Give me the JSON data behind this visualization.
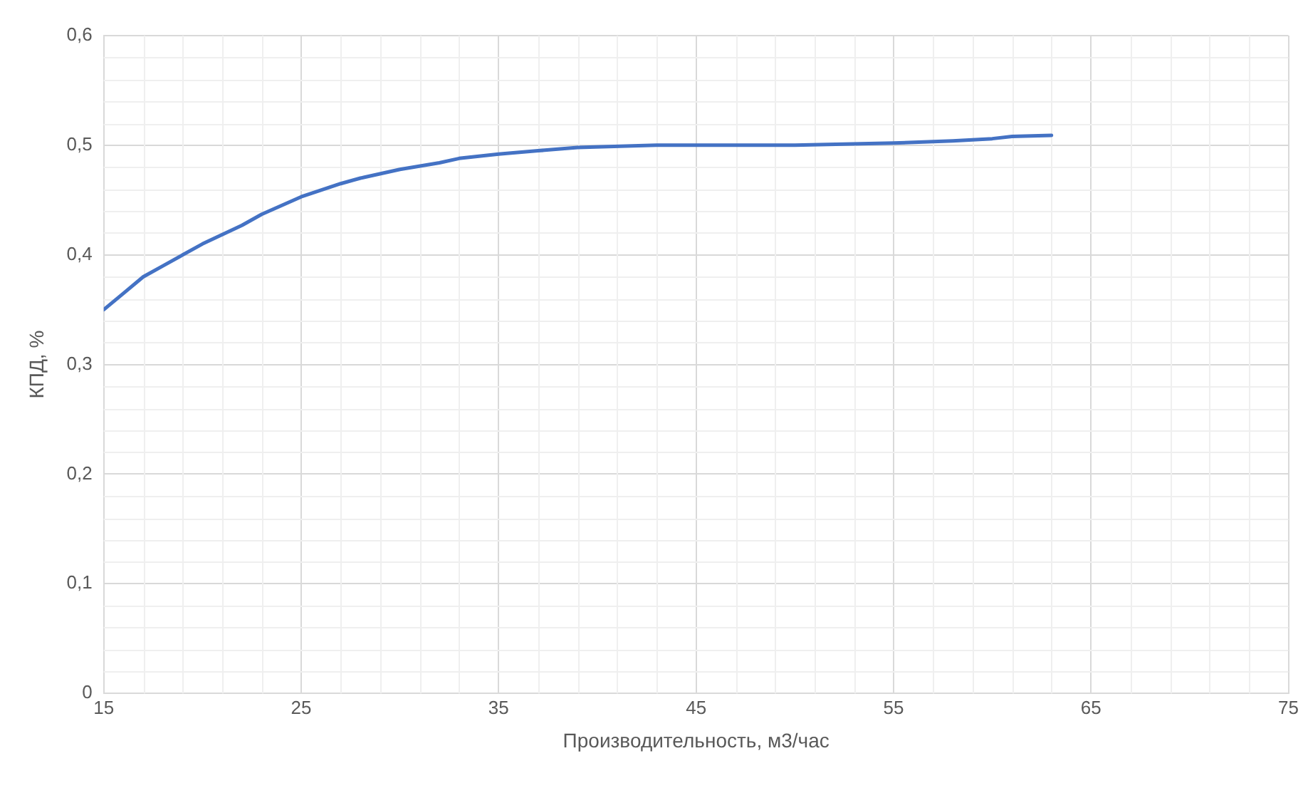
{
  "chart_data": {
    "type": "line",
    "xlabel": "Производительность, м3/час",
    "ylabel": "КПД, %",
    "x": [
      15,
      16,
      17,
      18,
      20,
      22,
      23,
      25,
      27,
      28,
      30,
      32,
      33,
      35,
      37,
      39,
      43,
      50,
      55,
      58,
      60,
      61,
      63
    ],
    "series": [
      {
        "color": "#4472c4",
        "values": [
          0.35,
          0.365,
          0.38,
          0.39,
          0.41,
          0.427,
          0.437,
          0.453,
          0.465,
          0.47,
          0.478,
          0.484,
          0.488,
          0.492,
          0.495,
          0.498,
          0.5,
          0.5,
          0.502,
          0.504,
          0.506,
          0.508,
          0.509
        ]
      }
    ],
    "xlim": [
      15,
      75
    ],
    "xticks": [
      15,
      25,
      35,
      45,
      55,
      65,
      75
    ],
    "ylim": [
      0,
      0.6
    ],
    "yticks": [
      {
        "value": 0,
        "label": "0"
      },
      {
        "value": 0.1,
        "label": "0,1"
      },
      {
        "value": 0.2,
        "label": "0,2"
      },
      {
        "value": 0.3,
        "label": "0,3"
      },
      {
        "value": 0.4,
        "label": "0,4"
      },
      {
        "value": 0.5,
        "label": "0,5"
      },
      {
        "value": 0.6,
        "label": "0,6"
      }
    ],
    "grid": true,
    "marker": "none",
    "line_style": "solid"
  }
}
